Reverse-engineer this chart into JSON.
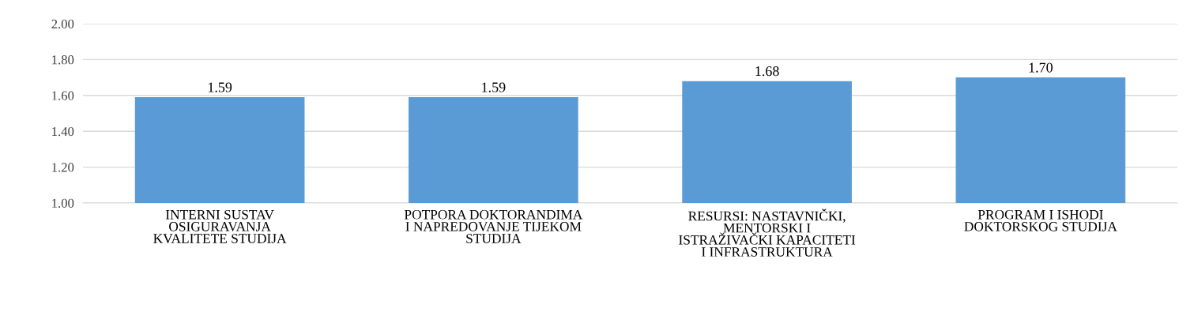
{
  "chart_data": {
    "type": "bar",
    "categories": [
      "INTERNI SUSTAV\nOSIGURAVANJA\nKVALITETE STUDIJA",
      "POTPORA DOKTORANDIMA\nI NAPREDOVANJE TIJEKOM\nSTUDIJA",
      "RESURSI: NASTAVNIČKI,\nMENTORSKI I\nISTRAŽIVAČKI KAPACITETI\nI INFRASTRUKTURA",
      "PROGRAM I ISHODI\nDOKTORSKOG STUDIJA"
    ],
    "values": [
      1.59,
      1.59,
      1.68,
      1.7
    ],
    "value_labels": [
      "1.59",
      "1.59",
      "1.68",
      "1.70"
    ],
    "color": "#5b9bd5",
    "ylim": [
      1.0,
      2.0
    ],
    "yticks": [
      {
        "value": 1.0,
        "label": "1.00"
      },
      {
        "value": 1.2,
        "label": "1.20"
      },
      {
        "value": 1.4,
        "label": "1.40"
      },
      {
        "value": 1.6,
        "label": "1.60"
      },
      {
        "value": 1.8,
        "label": "1.80"
      },
      {
        "value": 2.0,
        "label": "2.00"
      }
    ],
    "grid": "y"
  }
}
